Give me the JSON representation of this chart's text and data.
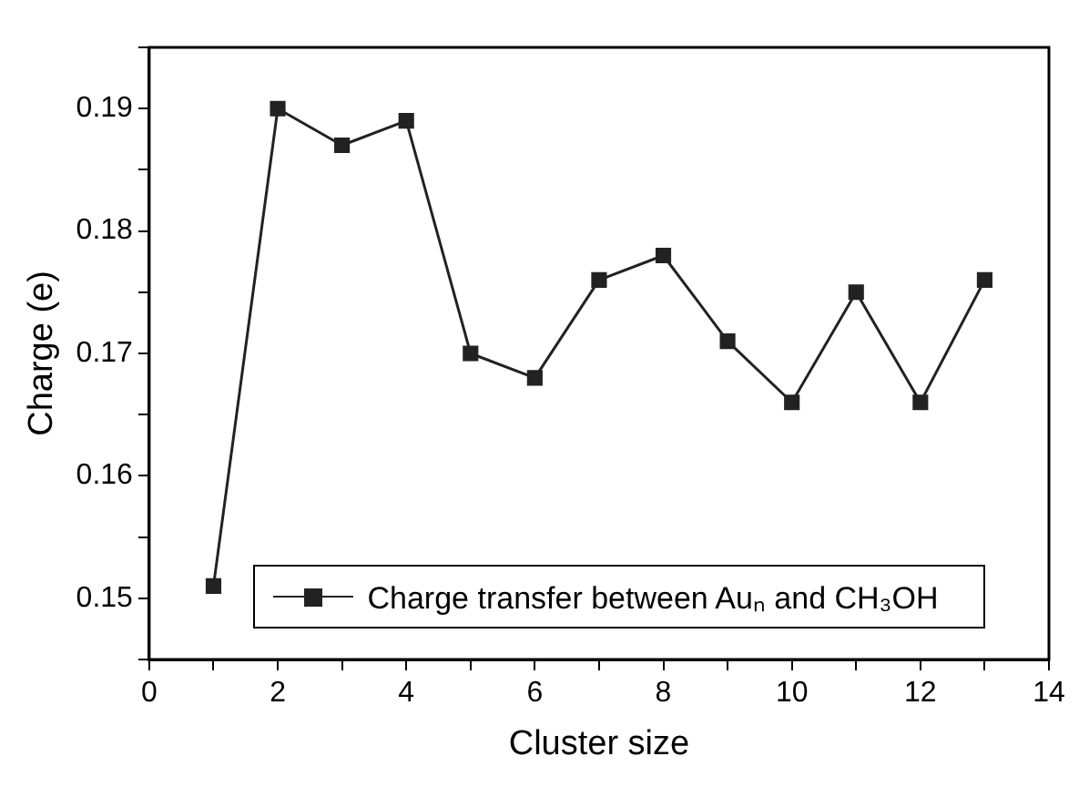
{
  "chart_data": {
    "type": "line",
    "xlabel": "Cluster size",
    "ylabel": "Charge (e)",
    "x": [
      1,
      2,
      3,
      4,
      5,
      6,
      7,
      8,
      9,
      10,
      11,
      12,
      13
    ],
    "series": [
      {
        "name": "Charge transfer between Auₙ and CH₃OH",
        "color": "#222222",
        "values": [
          0.151,
          0.19,
          0.187,
          0.189,
          0.17,
          0.168,
          0.176,
          0.178,
          0.171,
          0.166,
          0.175,
          0.166,
          0.176
        ]
      }
    ],
    "xlim": [
      0,
      14
    ],
    "ylim": [
      0.145,
      0.195
    ],
    "xticks": [
      0,
      {
        "value": 1,
        "label": null
      },
      2,
      {
        "value": 3,
        "label": null
      },
      4,
      {
        "value": 5,
        "label": null
      },
      6,
      {
        "value": 7,
        "label": null
      },
      8,
      {
        "value": 9,
        "label": null
      },
      10,
      {
        "value": 11,
        "label": null
      },
      12,
      {
        "value": 13,
        "label": null
      },
      14
    ],
    "yticks": [
      {
        "value": 0.145,
        "label": null
      },
      0.15,
      {
        "value": 0.155,
        "label": null
      },
      0.16,
      {
        "value": 0.165,
        "label": null
      },
      0.17,
      {
        "value": 0.175,
        "label": null
      },
      0.18,
      {
        "value": 0.185,
        "label": null
      },
      0.19,
      {
        "value": 0.195,
        "label": null
      }
    ],
    "grid": false,
    "legend": "bottom",
    "marker": "square",
    "line_style": "solid"
  }
}
